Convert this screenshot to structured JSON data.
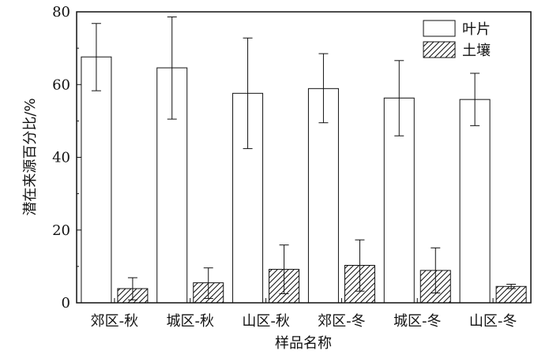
{
  "chart_data": {
    "type": "bar",
    "xlabel": "样品名称",
    "ylabel": "潜在来源百分比/%",
    "ylim": [
      0,
      80
    ],
    "yticks": [
      0,
      20,
      40,
      60,
      80
    ],
    "grid": false,
    "legend_position": "top-right",
    "categories": [
      "郊区-秋",
      "城区-秋",
      "山区-秋",
      "郊区-冬",
      "城区-冬",
      "山区-冬"
    ],
    "series": [
      {
        "name": "叶片",
        "pattern": "solid",
        "values": [
          67.6,
          64.6,
          57.6,
          58.9,
          56.3,
          55.9
        ],
        "error_low": [
          58.3,
          50.5,
          42.4,
          49.5,
          45.9,
          48.7
        ],
        "error_high": [
          76.8,
          78.6,
          72.8,
          68.5,
          66.6,
          63.1
        ]
      },
      {
        "name": "土壤",
        "pattern": "hatched",
        "values": [
          3.9,
          5.5,
          9.2,
          10.3,
          8.9,
          4.5
        ],
        "error_low": [
          0.8,
          1.2,
          2.5,
          3.2,
          2.7,
          3.9
        ],
        "error_high": [
          6.9,
          9.6,
          15.9,
          17.3,
          15.1,
          5.1
        ]
      }
    ]
  }
}
